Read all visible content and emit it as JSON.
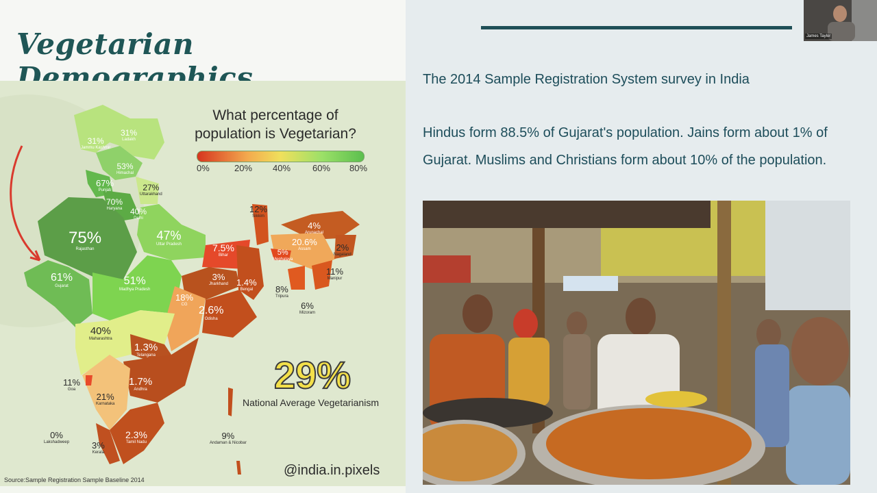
{
  "slide": {
    "title": "Vegetarian Demographics",
    "legend_title_line1": "What percentage of",
    "legend_title_line2": "population is Vegetarian?",
    "legend_ticks": [
      "0%",
      "20%",
      "40%",
      "60%",
      "80%"
    ],
    "national_average_value": "29%",
    "national_average_label": "National Average Vegetarianism",
    "handle": "@india.in.pixels",
    "source": "Source:Sample Registration Sample Baseline 2014",
    "states": [
      {
        "value": "31%",
        "name": "Jammu Kashmir"
      },
      {
        "value": "31%",
        "name": "Ladakh"
      },
      {
        "value": "53%",
        "name": "Himachal"
      },
      {
        "value": "67%",
        "name": "Punjab"
      },
      {
        "value": "27%",
        "name": "Uttarakhand"
      },
      {
        "value": "70%",
        "name": "Haryana"
      },
      {
        "value": "40%",
        "name": "Delhi"
      },
      {
        "value": "75%",
        "name": "Rajasthan"
      },
      {
        "value": "47%",
        "name": "Uttar Pradesh"
      },
      {
        "value": "61%",
        "name": "Gujarat"
      },
      {
        "value": "51%",
        "name": "Madhya Pradesh"
      },
      {
        "value": "7.5%",
        "name": "Bihar"
      },
      {
        "value": "3%",
        "name": "Jharkhand"
      },
      {
        "value": "1.4%",
        "name": "Bengal"
      },
      {
        "value": "12%",
        "name": "Sikkim"
      },
      {
        "value": "4%",
        "name": "Arunachal"
      },
      {
        "value": "20.6%",
        "name": "Assam"
      },
      {
        "value": "5%",
        "name": "Meghalaya"
      },
      {
        "value": "2%",
        "name": "Nagaland"
      },
      {
        "value": "11%",
        "name": "Manipur"
      },
      {
        "value": "8%",
        "name": "Tripura"
      },
      {
        "value": "6%",
        "name": "Mizoram"
      },
      {
        "value": "18%",
        "name": "CG"
      },
      {
        "value": "2.6%",
        "name": "Odisha"
      },
      {
        "value": "40%",
        "name": "Maharashtra"
      },
      {
        "value": "1.3%",
        "name": "Telangana"
      },
      {
        "value": "1.7%",
        "name": "Andhra"
      },
      {
        "value": "11%",
        "name": "Goa"
      },
      {
        "value": "21%",
        "name": "Karnataka"
      },
      {
        "value": "0%",
        "name": "Lakshadweep"
      },
      {
        "value": "3%",
        "name": "Kerala"
      },
      {
        "value": "2.3%",
        "name": "Tamil Nadu"
      },
      {
        "value": "9%",
        "name": "Andaman & Nicobar"
      }
    ],
    "watermark": "india.in.pi"
  },
  "notes": {
    "heading": "The 2014 Sample Registration System survey in India",
    "body": "Hindus form 88.5% of Gujarat's population. Jains form about 1% of Gujarat. Muslims and Christians form about 10% of the population."
  },
  "video": {
    "participant_name": "James Taylor"
  }
}
